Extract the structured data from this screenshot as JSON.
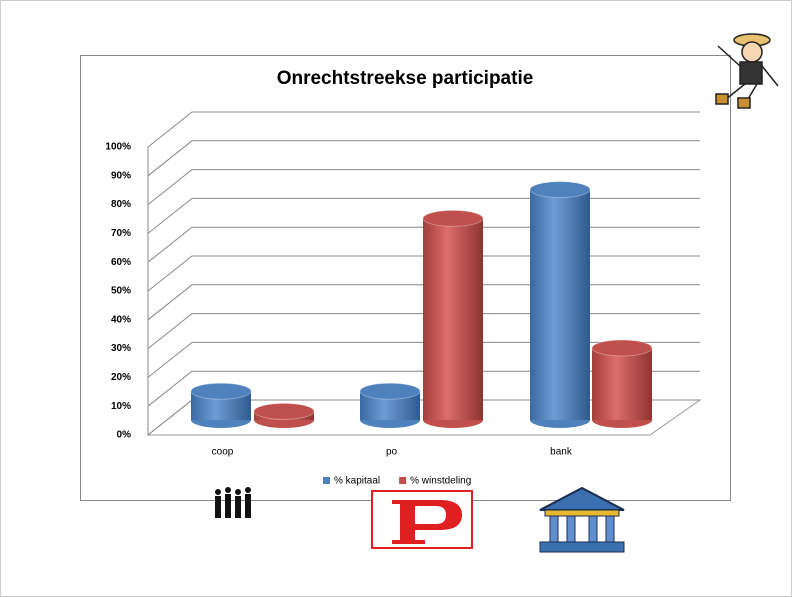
{
  "chart_data": {
    "type": "bar3d",
    "title": "Onrechtstreekse participatie",
    "categories": [
      "coop",
      "po",
      "bank"
    ],
    "series": [
      {
        "name": "% kapitaal",
        "color": "#4f81bd",
        "values": [
          10,
          10,
          80
        ]
      },
      {
        "name": "% winstdeling",
        "color": "#c0504d",
        "values": [
          3,
          70,
          25
        ]
      }
    ],
    "ylim": [
      0,
      100
    ],
    "yticks": [
      {
        "value": 0,
        "label": "0%"
      },
      {
        "value": 10,
        "label": "10%"
      },
      {
        "value": 20,
        "label": "20%"
      },
      {
        "value": 30,
        "label": "30%"
      },
      {
        "value": 40,
        "label": "40%"
      },
      {
        "value": 50,
        "label": "50%"
      },
      {
        "value": 60,
        "label": "60%"
      },
      {
        "value": 70,
        "label": "70%"
      },
      {
        "value": 80,
        "label": "80%"
      },
      {
        "value": 90,
        "label": "90%"
      },
      {
        "value": 100,
        "label": "100%"
      }
    ],
    "grid": true,
    "legend": "bottom"
  }
}
